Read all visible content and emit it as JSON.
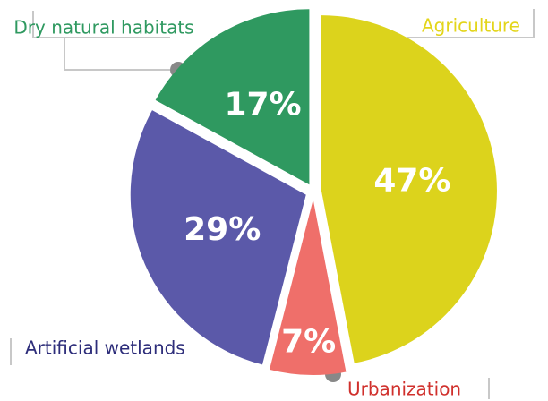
{
  "chart_data": {
    "type": "pie",
    "categories": [
      "Agriculture",
      "Urbanization",
      "Artificial wetlands",
      "Dry natural habitats"
    ],
    "values": [
      47,
      7,
      29,
      17
    ],
    "value_labels": [
      "47%",
      "7%",
      "29%",
      "17%"
    ],
    "colors": [
      "#dcd31c",
      "#ef6f6a",
      "#5b59a9",
      "#2f9960"
    ]
  }
}
